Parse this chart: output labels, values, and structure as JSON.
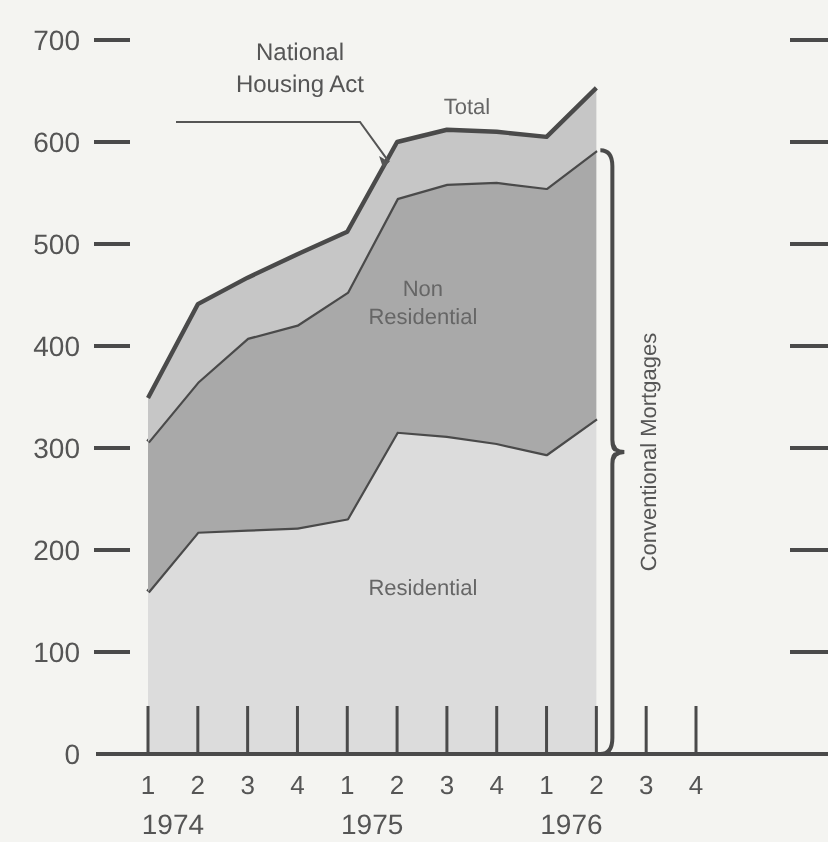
{
  "chart_data": {
    "type": "area",
    "stacked": true,
    "categories": [
      "1",
      "2",
      "3",
      "4",
      "1",
      "2",
      "3",
      "4",
      "1",
      "2",
      "3",
      "4"
    ],
    "series": [
      {
        "name": "Residential",
        "color": "#dcdcdc",
        "values": [
          159,
          218,
          220,
          222,
          231,
          316,
          312,
          305,
          294,
          329,
          null,
          null
        ]
      },
      {
        "name": "Non Residential",
        "color": "#a9a9a9",
        "values": [
          147,
          147,
          188,
          199,
          222,
          229,
          247,
          256,
          261,
          263,
          null,
          null
        ]
      },
      {
        "name": "National Housing Act",
        "color": "#c6c6c6",
        "values": [
          43,
          76,
          59,
          69,
          59,
          55,
          53,
          49,
          50,
          61,
          null,
          null
        ]
      }
    ],
    "ylim": [
      0,
      700
    ],
    "yticks": [
      0,
      100,
      200,
      300,
      400,
      500,
      600,
      700
    ],
    "annotations": [
      "1974",
      "1975",
      "1976",
      "Total",
      "Conventional Mortgages"
    ],
    "grid": false
  }
}
